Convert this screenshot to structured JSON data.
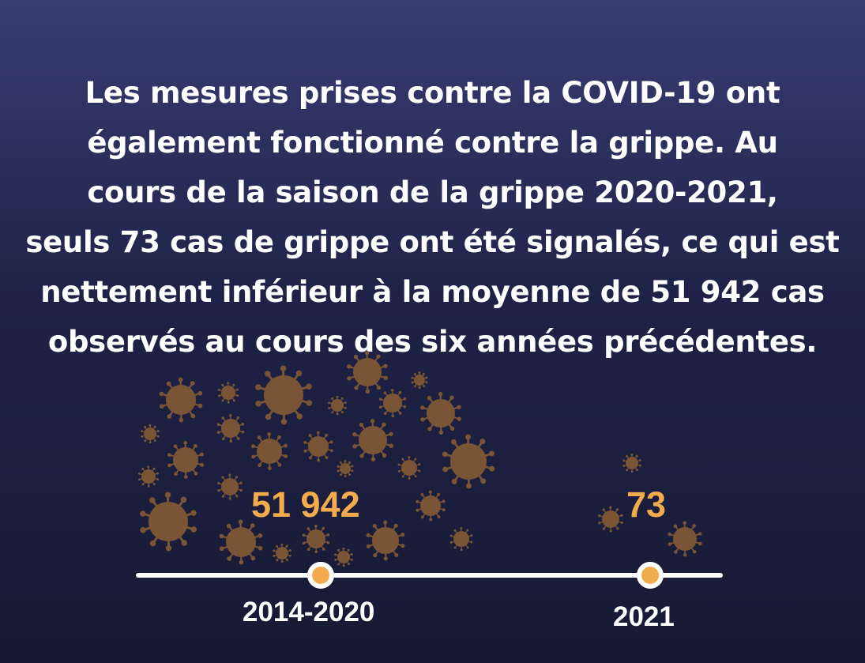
{
  "headline": {
    "lines": [
      "Les mesures prises contre la COVID-19 ont",
      "également fonctionné contre la grippe. Au",
      "cours de la saison de la grippe 2020-2021,",
      "seuls 73 cas de grippe ont été signalés, ce qui est",
      "nettement inférieur à la moyenne de 51 942 cas",
      "observés au cours des six années précédentes."
    ]
  },
  "timeline": {
    "periods": [
      {
        "label": "2014-2020",
        "cases": "51 942"
      },
      {
        "label": "2021",
        "cases": "73"
      }
    ]
  },
  "colors": {
    "background_top": "#383d74",
    "background_bottom": "#171a34",
    "accent": "#f2ac4e",
    "virus": "#7a5535",
    "text": "#ffffff"
  },
  "icons": {
    "decoration": "virus-icon"
  }
}
